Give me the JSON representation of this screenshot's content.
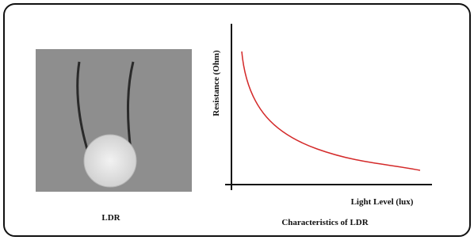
{
  "photo": {
    "caption": "LDR"
  },
  "graph": {
    "y_label": "Resistance (Ohm)",
    "x_label": "Light Level (lux)",
    "caption": "Characteristics of LDR"
  }
}
